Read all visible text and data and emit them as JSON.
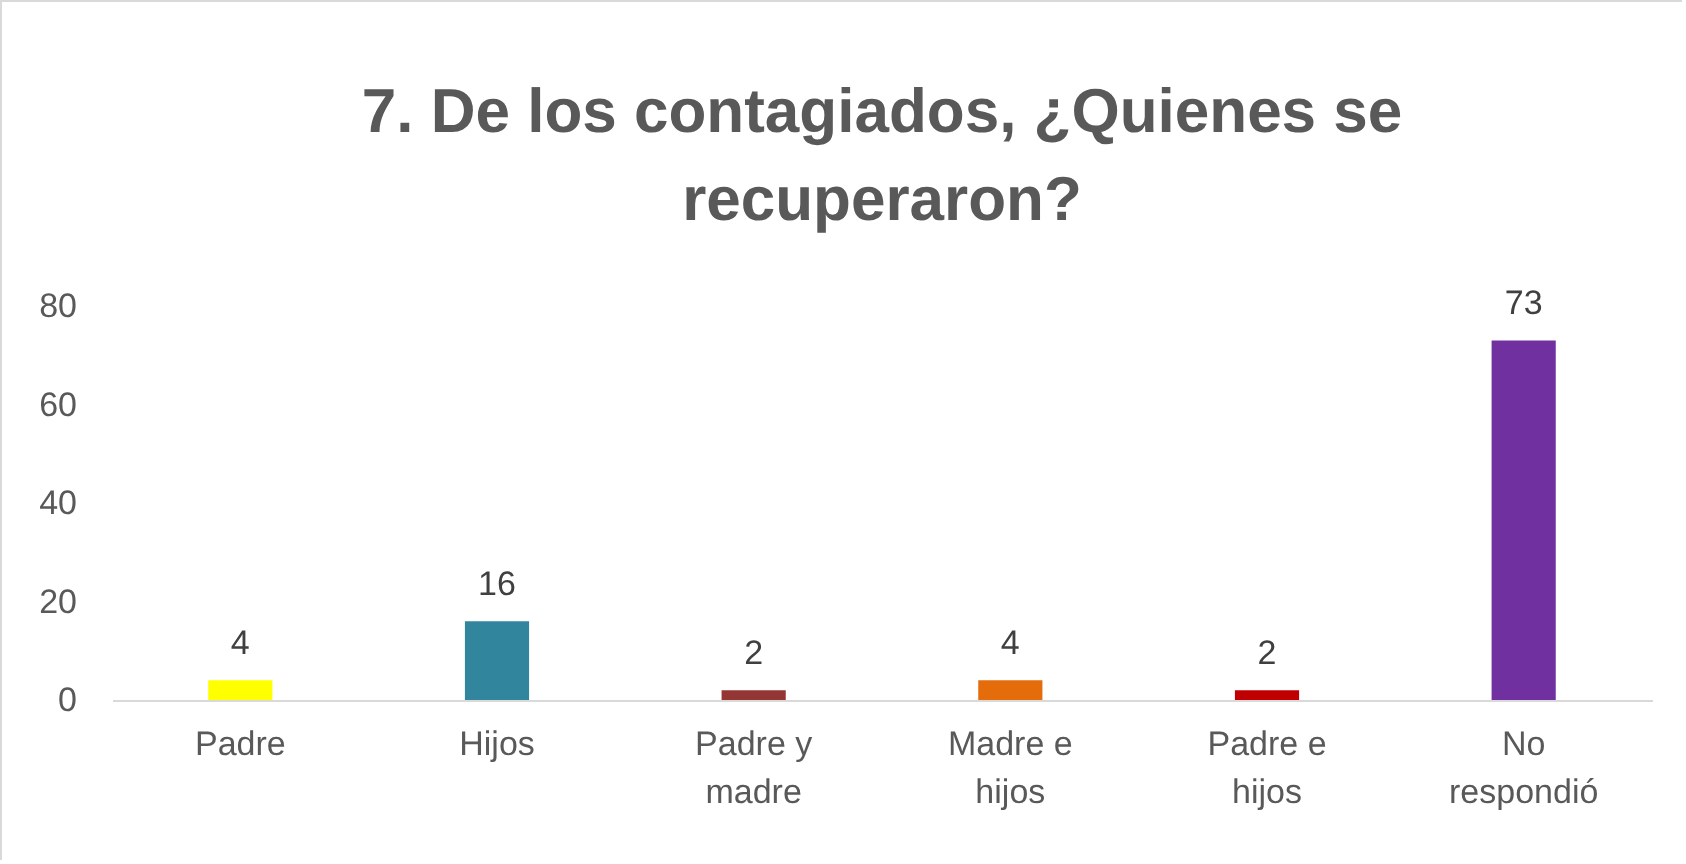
{
  "chart_data": {
    "type": "bar",
    "title": "7. De los contagiados, ¿Quienes se recuperaron?",
    "categories": [
      "Padre",
      "Hijos",
      "Padre y madre",
      "Madre e hijos",
      "Padre e hijos",
      "No respondió"
    ],
    "values": [
      4,
      16,
      2,
      4,
      2,
      73
    ],
    "colors": [
      "#ffff00",
      "#31859c",
      "#943634",
      "#e46c0a",
      "#c00000",
      "#7030a0"
    ],
    "ylim": [
      0,
      80
    ],
    "yticks": [
      0,
      20,
      40,
      60,
      80
    ],
    "grid": false,
    "data_labels": true
  }
}
